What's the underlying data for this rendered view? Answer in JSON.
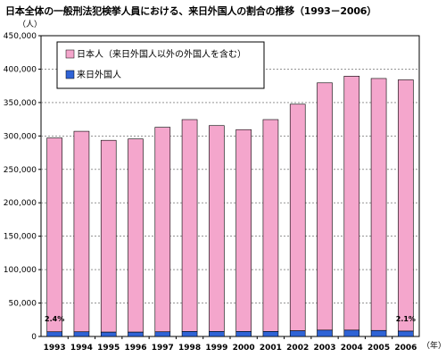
{
  "chart_data": {
    "type": "bar",
    "title": "日本全体の一般刑法犯検挙人員における、来日外国人の割合の推移（1993－2006）",
    "ylabel": "（人）",
    "xlabel": "（年）",
    "ylim": [
      0,
      450000
    ],
    "yticks": [
      "0",
      "50,000",
      "100,000",
      "150,000",
      "200,000",
      "250,000",
      "300,000",
      "350,000",
      "400,000",
      "450,000"
    ],
    "categories": [
      "1993",
      "1994",
      "1995",
      "1996",
      "1997",
      "1998",
      "1999",
      "2000",
      "2001",
      "2002",
      "2003",
      "2004",
      "2005",
      "2006"
    ],
    "stacked": true,
    "series": [
      {
        "name": "日本人（来日外国人以外の外国人を含む）",
        "color": "#f4a6cc",
        "values": [
          290000,
          300000,
          287000,
          289000,
          306000,
          317000,
          308000,
          302000,
          317000,
          339000,
          370000,
          380000,
          377000,
          376000
        ]
      },
      {
        "name": "来日外国人",
        "color": "#2f63d6",
        "values": [
          7000,
          7000,
          6500,
          6500,
          7000,
          7500,
          7500,
          7500,
          7500,
          8500,
          9500,
          9500,
          9000,
          8000
        ]
      }
    ],
    "annotations": [
      {
        "category": "1993",
        "text": "2.4%"
      },
      {
        "category": "2006",
        "text": "2.1%"
      }
    ],
    "legend_position": "top-left"
  }
}
